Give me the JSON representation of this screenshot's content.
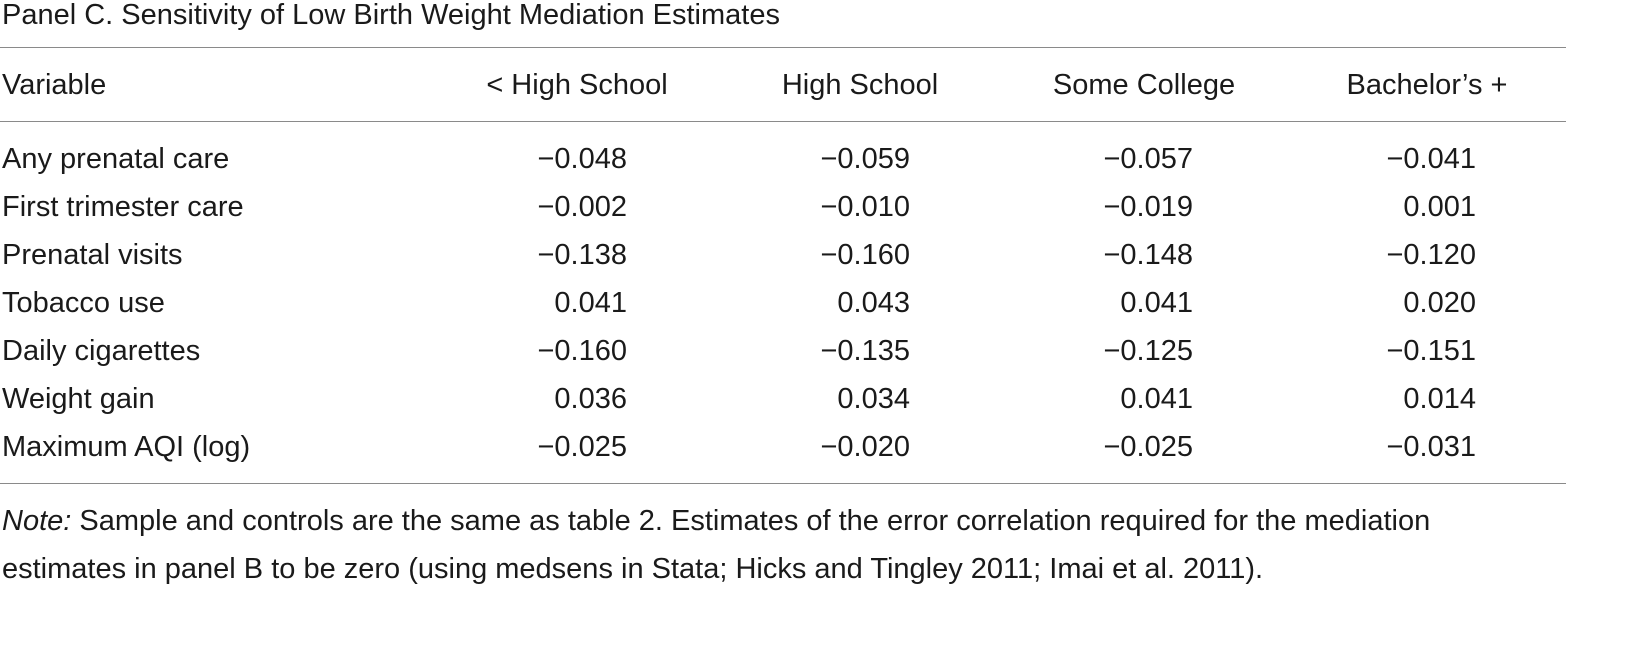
{
  "title": "Panel C. Sensitivity of Low Birth Weight Mediation Estimates",
  "table": {
    "columns": [
      "Variable",
      "< High School",
      "High School",
      "Some College",
      "Bachelor’s +"
    ],
    "rows": [
      [
        "Any prenatal care",
        "−0.048",
        "−0.059",
        "−0.057",
        "−0.041"
      ],
      [
        "First trimester care",
        "−0.002",
        "−0.010",
        "−0.019",
        "0.001"
      ],
      [
        "Prenatal visits",
        "−0.138",
        "−0.160",
        "−0.148",
        "−0.120"
      ],
      [
        "Tobacco use",
        "0.041",
        "0.043",
        "0.041",
        "0.020"
      ],
      [
        "Daily cigarettes",
        "−0.160",
        "−0.135",
        "−0.125",
        "−0.151"
      ],
      [
        "Weight gain",
        "0.036",
        "0.034",
        "0.041",
        "0.014"
      ],
      [
        "Maximum AQI (log)",
        "−0.025",
        "−0.020",
        "−0.025",
        "−0.031"
      ]
    ]
  },
  "note": {
    "label": "Note:",
    "text": "Sample and controls are the same as table 2. Estimates of the error correlation required for the mediation estimates in panel B to be zero (using medsens in Stata; Hicks and Tingley 2011; Imai et al. 2011)."
  }
}
